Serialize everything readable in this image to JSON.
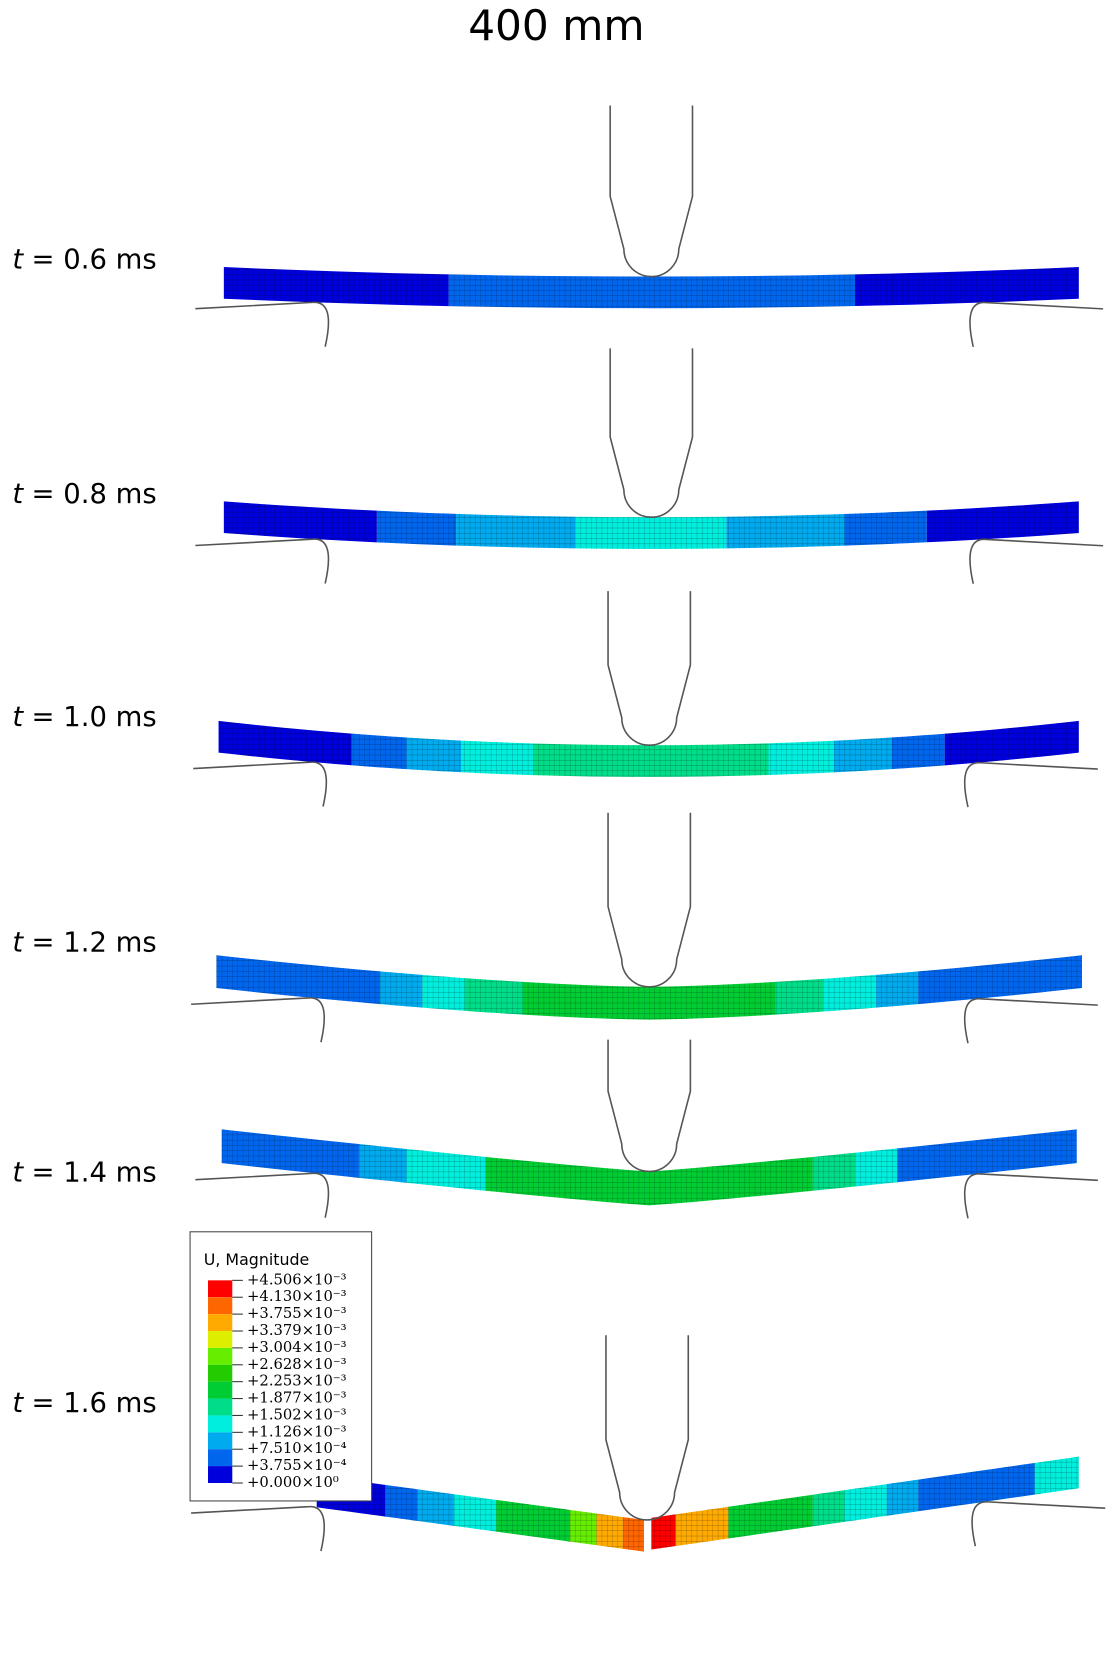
{
  "title": "400 mm",
  "panels": [
    {
      "symbol": "t",
      "rest": "= 0.6 ms"
    },
    {
      "symbol": "t",
      "rest": "= 0.8 ms"
    },
    {
      "symbol": "t",
      "rest": "= 1.0 ms"
    },
    {
      "symbol": "t",
      "rest": "= 1.2 ms"
    },
    {
      "symbol": "t",
      "rest": "= 1.4 ms"
    },
    {
      "symbol": "t",
      "rest": "= 1.6 ms"
    }
  ],
  "legend": {
    "title": "U, Magnitude",
    "entries": [
      "+4.506×10⁻³",
      "+4.130×10⁻³",
      "+3.755×10⁻³",
      "+3.379×10⁻³",
      "+3.004×10⁻³",
      "+2.628×10⁻³",
      "+2.253×10⁻³",
      "+1.877×10⁻³",
      "+1.502×10⁻³",
      "+1.126×10⁻³",
      "+7.510×10⁻⁴",
      "+3.755×10⁻⁴",
      "+0.000×10⁰"
    ]
  }
}
